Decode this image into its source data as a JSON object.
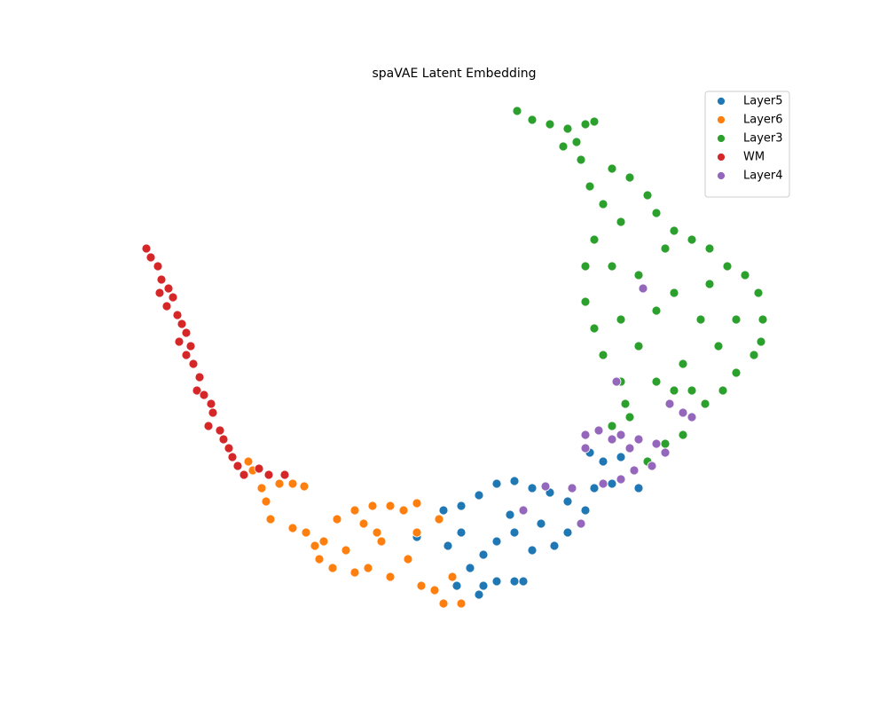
{
  "chart_data": {
    "type": "scatter",
    "title": "spaVAE Latent Embedding",
    "xlim": [
      12.5,
      90
    ],
    "ylim": [
      9.6,
      70.4
    ],
    "legend": "upper right",
    "series": [
      {
        "name": "Layer5",
        "color": "#1f77b4",
        "x": [
          47.0,
          50.0,
          52.0,
          54.0,
          56.0,
          58.0,
          60.0,
          62.0,
          64.0,
          66.0,
          67.0,
          69.0,
          65.5,
          64.0,
          62.5,
          60.0,
          58.0,
          56.0,
          54.5,
          53.0,
          54.5,
          56.0,
          58.0,
          59.0,
          52.0,
          50.5,
          51.5,
          54.0,
          66.5,
          68.0,
          70.0,
          72.0,
          47.0,
          57.5,
          61.0
        ],
        "values": [
          23.3,
          22.5,
          23.0,
          24.2,
          25.5,
          25.8,
          25.0,
          24.5,
          23.5,
          22.5,
          25.0,
          25.5,
          21.0,
          20.0,
          18.5,
          18.0,
          20.0,
          19.0,
          17.5,
          16.0,
          14.0,
          14.5,
          14.5,
          14.5,
          20.0,
          18.5,
          14.0,
          13.0,
          29.0,
          28.0,
          28.5,
          25.0,
          19.5,
          22.0,
          21.0
        ]
      },
      {
        "name": "Layer6",
        "color": "#ff7f0e",
        "x": [
          28.0,
          28.5,
          29.5,
          30.0,
          30.5,
          31.5,
          33.0,
          34.3,
          33.0,
          34.5,
          35.5,
          36.0,
          37.5,
          39.0,
          38.0,
          40.0,
          41.0,
          42.0,
          44.0,
          45.5,
          43.0,
          41.5,
          44.0,
          46.0,
          47.0,
          47.5,
          49.0,
          50.0,
          52.0,
          51.0,
          49.5,
          47.0,
          40.0,
          36.5,
          42.5
        ],
        "values": [
          28.0,
          27.0,
          25.0,
          23.5,
          21.5,
          25.5,
          25.5,
          25.2,
          20.5,
          20.0,
          18.5,
          17.0,
          16.0,
          18.0,
          21.5,
          22.5,
          21.0,
          23.0,
          23.0,
          22.5,
          19.0,
          16.0,
          15.0,
          17.0,
          20.0,
          14.0,
          13.5,
          12.0,
          12.0,
          15.0,
          21.5,
          23.3,
          15.5,
          19.0,
          20.0
        ]
      },
      {
        "name": "Layer3",
        "color": "#2ca02c",
        "x": [
          58.3,
          60.0,
          62.0,
          64.0,
          66.0,
          67.0,
          65.0,
          63.5,
          65.5,
          66.5,
          69.0,
          71.0,
          73.0,
          68.0,
          70.0,
          74.0,
          76.0,
          78.0,
          80.0,
          82.0,
          84.0,
          85.5,
          86.0,
          85.8,
          85.0,
          83.0,
          81.5,
          79.5,
          78.0,
          77.0,
          75.0,
          73.0,
          71.0,
          70.0,
          68.0,
          67.0,
          66.0,
          66.0,
          67.0,
          69.0,
          72.0,
          74.0,
          76.0,
          79.0,
          81.0,
          77.0,
          74.0,
          72.0,
          70.0,
          75.0,
          80.0,
          83.0,
          69.0,
          70.5,
          78.0,
          76.0
        ],
        "values": [
          67.5,
          66.5,
          66.0,
          65.5,
          66.0,
          66.3,
          64.0,
          63.5,
          62.0,
          59.0,
          61.0,
          60.0,
          58.0,
          57.0,
          55.0,
          56.0,
          54.0,
          53.0,
          52.0,
          50.0,
          49.0,
          47.0,
          44.0,
          41.5,
          40.0,
          38.0,
          36.0,
          34.5,
          33.0,
          31.0,
          30.0,
          28.0,
          33.0,
          37.0,
          40.0,
          43.0,
          46.0,
          50.0,
          53.0,
          50.0,
          49.0,
          45.0,
          47.0,
          44.0,
          41.0,
          39.0,
          37.0,
          41.0,
          44.0,
          52.0,
          48.0,
          44.0,
          32.0,
          34.5,
          36.0,
          36.0
        ]
      },
      {
        "name": "WM",
        "color": "#d62728",
        "x": [
          16.5,
          17.0,
          17.8,
          18.2,
          19.0,
          19.5,
          18.8,
          20.0,
          20.5,
          21.0,
          20.2,
          21.5,
          21.0,
          21.8,
          22.5,
          22.2,
          23.0,
          23.8,
          24.0,
          23.5,
          24.8,
          25.2,
          25.8,
          26.2,
          26.8,
          27.5,
          29.2,
          30.3,
          32.1,
          18.0
        ],
        "values": [
          52.0,
          51.0,
          50.0,
          48.5,
          47.5,
          46.5,
          45.5,
          44.5,
          43.5,
          42.5,
          41.5,
          41.0,
          40.0,
          39.0,
          37.5,
          36.0,
          35.5,
          34.5,
          33.5,
          32.0,
          31.5,
          30.5,
          29.5,
          28.5,
          27.5,
          26.5,
          27.2,
          26.5,
          26.5,
          47.0
        ]
      },
      {
        "name": "Layer4",
        "color": "#9467bd",
        "x": [
          66.0,
          67.5,
          69.0,
          70.0,
          72.0,
          74.0,
          75.0,
          73.5,
          71.5,
          70.0,
          68.0,
          66.0,
          64.5,
          65.5,
          59.0,
          72.5,
          77.0,
          78.0,
          69.5,
          75.5,
          61.5,
          71.0
        ],
        "values": [
          31.0,
          31.5,
          30.5,
          31.0,
          30.5,
          30.0,
          29.0,
          27.5,
          27.0,
          26.0,
          25.5,
          29.5,
          25.0,
          21.0,
          22.5,
          47.5,
          33.5,
          33.0,
          37.0,
          34.5,
          25.2,
          29.5
        ]
      }
    ]
  }
}
